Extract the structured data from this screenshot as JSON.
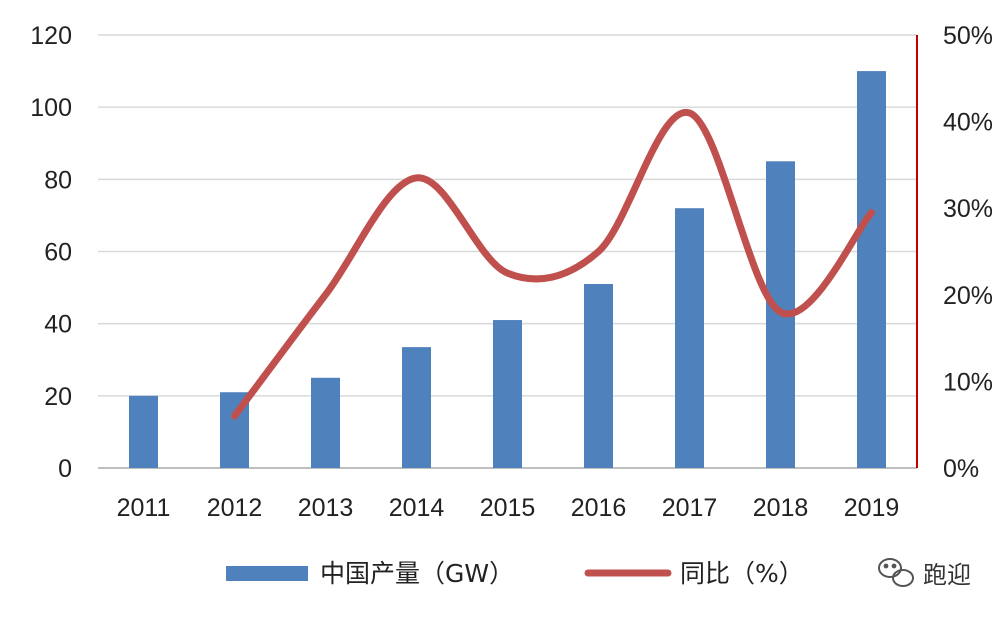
{
  "chart_data": {
    "type": "bar",
    "categories": [
      "2011",
      "2012",
      "2013",
      "2014",
      "2015",
      "2016",
      "2017",
      "2018",
      "2019"
    ],
    "series": [
      {
        "name": "中国产量（GW）",
        "type": "bar",
        "axis": "left",
        "color": "#4F81BD",
        "values": [
          20,
          21,
          25,
          33.5,
          41,
          51,
          72,
          85,
          110
        ]
      },
      {
        "name": "同比（%）",
        "type": "line",
        "smooth": true,
        "axis": "right",
        "color": "#C0504D",
        "values": [
          null,
          6,
          20,
          33.5,
          22.5,
          25,
          41,
          18,
          29.5
        ]
      }
    ],
    "y_left": {
      "min": 0,
      "max": 120,
      "ticks": [
        "0",
        "20",
        "40",
        "60",
        "80",
        "100",
        "120"
      ]
    },
    "y_right": {
      "min": 0,
      "max": 50,
      "ticks": [
        "0%",
        "10%",
        "20%",
        "30%",
        "40%",
        "50%"
      ],
      "axis_color": "#C00000"
    },
    "grid": true,
    "legend_position": "bottom"
  },
  "watermark": {
    "text": "跑迎",
    "icon": "wechat-icon"
  }
}
